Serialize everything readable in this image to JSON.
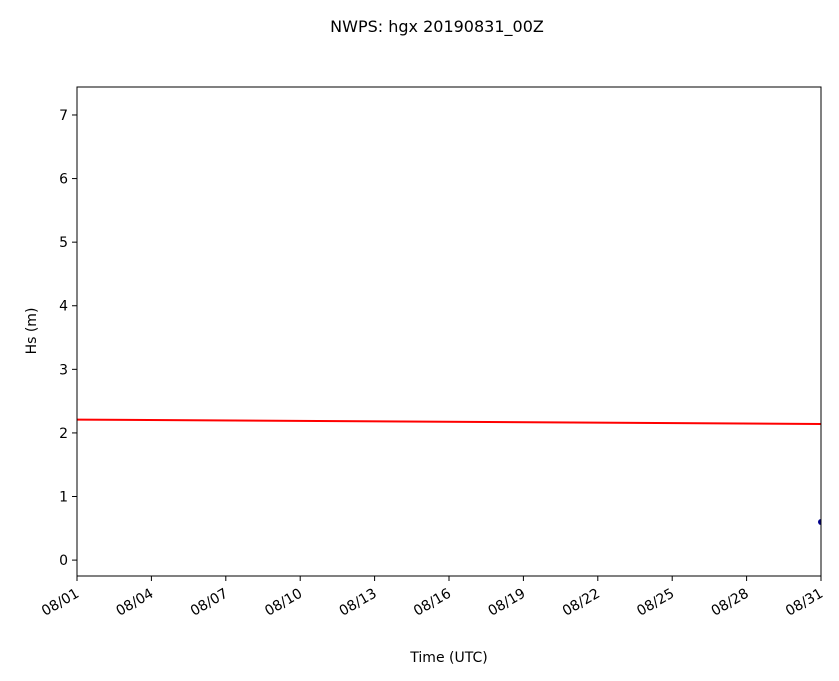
{
  "chart_data": {
    "type": "line",
    "title": "NWPS: hgx 20190831_00Z",
    "xlabel": "Time (UTC)",
    "ylabel": "Hs (m)",
    "series": [
      {
        "color": "#ff0000",
        "x": [
          1,
          31
        ],
        "values": [
          2.21,
          2.14
        ]
      },
      {
        "color": "#00008b",
        "x": [
          31
        ],
        "values": [
          0.6
        ]
      }
    ],
    "xlim": [
      1,
      31
    ],
    "xticks": [
      {
        "value": 1,
        "label": "08/01"
      },
      {
        "value": 4,
        "label": "08/04"
      },
      {
        "value": 7,
        "label": "08/07"
      },
      {
        "value": 10,
        "label": "08/10"
      },
      {
        "value": 13,
        "label": "08/13"
      },
      {
        "value": 16,
        "label": "08/16"
      },
      {
        "value": 19,
        "label": "08/19"
      },
      {
        "value": 22,
        "label": "08/22"
      },
      {
        "value": 25,
        "label": "08/25"
      },
      {
        "value": 28,
        "label": "08/28"
      },
      {
        "value": 31,
        "label": "08/31"
      }
    ],
    "ylim": [
      -0.25,
      7.44
    ],
    "yticks": [
      0,
      1,
      2,
      3,
      4,
      5,
      6,
      7
    ],
    "grid": false
  }
}
